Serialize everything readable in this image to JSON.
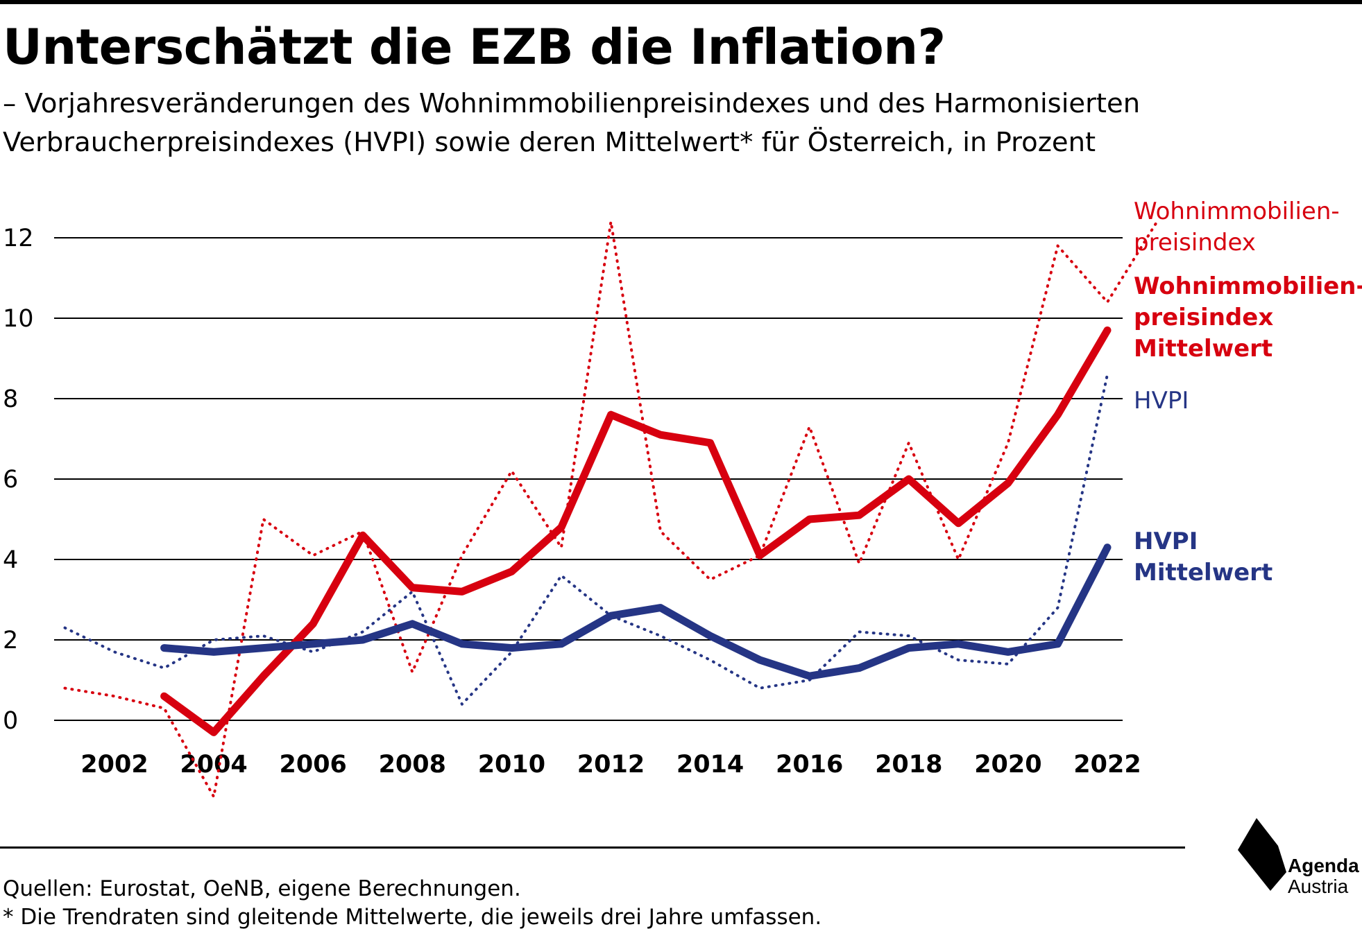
{
  "title": "Unterschätzt die EZB die Inflation?",
  "subtitle": "– Vorjahresveränderungen des Wohnimmobilienpreisindexes und des Harmonisierten Verbraucherpreisindexes (HVPI) sowie deren Mittelwert* für Österreich, in Prozent",
  "footer": {
    "sources": "Quellen: Eurostat, OeNB, eigene Berechnungen.",
    "footnote": "* Die Trendraten sind gleitende Mittelwerte, die jeweils drei Jahre umfassen."
  },
  "logo": {
    "line1": "Agenda",
    "line2": "Austria"
  },
  "colors": {
    "red": "#d7000f",
    "blue": "#253585",
    "grid": "#000000"
  },
  "chart_data": {
    "type": "line",
    "title": "Unterschätzt die EZB die Inflation?",
    "xlabel": "",
    "ylabel": "",
    "xlim": [
      2000.5,
      2022.6
    ],
    "ylim": [
      0,
      12
    ],
    "x_ticks": [
      "2002",
      "2004",
      "2006",
      "2008",
      "2010",
      "2012",
      "2014",
      "2016",
      "2018",
      "2020",
      "2022"
    ],
    "y_ticks": [
      "0",
      "2",
      "4",
      "6",
      "8",
      "10",
      "12"
    ],
    "grid": "horizontal",
    "legend": "right, labels next to line ends",
    "series": [
      {
        "name": "Wohnimmobilienpreisindex",
        "label_lines": [
          "Wohnimmobilien-",
          "preisindex"
        ],
        "style": "dotted",
        "color": "#d7000f",
        "x": [
          2001,
          2002,
          2003,
          2004,
          2005,
          2006,
          2007,
          2008,
          2009,
          2010,
          2011,
          2012,
          2013,
          2014,
          2015,
          2016,
          2017,
          2018,
          2019,
          2020,
          2021,
          2022,
          2023
        ],
        "y": [
          0.8,
          0.6,
          0.3,
          -1.9,
          5.0,
          4.1,
          4.7,
          1.2,
          4.1,
          6.2,
          4.3,
          12.4,
          4.7,
          3.5,
          4.1,
          7.3,
          3.9,
          6.9,
          4.0,
          6.9,
          11.8,
          10.4,
          12.4
        ]
      },
      {
        "name": "Wohnimmobilienpreisindex Mittelwert",
        "label_lines": [
          "Wohnimmobilien-",
          "preisindex",
          "Mittelwert"
        ],
        "style": "solid",
        "color": "#d7000f",
        "x": [
          2003,
          2004,
          2005,
          2006,
          2007,
          2008,
          2009,
          2010,
          2011,
          2012,
          2013,
          2014,
          2015,
          2016,
          2017,
          2018,
          2019,
          2020,
          2021,
          2022
        ],
        "y": [
          0.6,
          -0.3,
          1.1,
          2.4,
          4.6,
          3.3,
          3.2,
          3.7,
          4.8,
          7.6,
          7.1,
          6.9,
          4.1,
          5.0,
          5.1,
          6.0,
          4.9,
          5.9,
          7.6,
          9.7
        ]
      },
      {
        "name": "HVPI",
        "label_lines": [
          "HVPI"
        ],
        "style": "dotted",
        "color": "#253585",
        "x": [
          2001,
          2002,
          2003,
          2004,
          2005,
          2006,
          2007,
          2008,
          2009,
          2010,
          2011,
          2012,
          2013,
          2014,
          2015,
          2016,
          2017,
          2018,
          2019,
          2020,
          2021,
          2022
        ],
        "y": [
          2.3,
          1.7,
          1.3,
          2.0,
          2.1,
          1.7,
          2.2,
          3.2,
          0.4,
          1.7,
          3.6,
          2.6,
          2.1,
          1.5,
          0.8,
          1.0,
          2.2,
          2.1,
          1.5,
          1.4,
          2.8,
          8.6
        ]
      },
      {
        "name": "HVPI Mittelwert",
        "label_lines": [
          "HVPI",
          "Mittelwert"
        ],
        "style": "solid",
        "color": "#253585",
        "x": [
          2003,
          2004,
          2005,
          2006,
          2007,
          2008,
          2009,
          2010,
          2011,
          2012,
          2013,
          2014,
          2015,
          2016,
          2017,
          2018,
          2019,
          2020,
          2021,
          2022
        ],
        "y": [
          1.8,
          1.7,
          1.8,
          1.9,
          2.0,
          2.4,
          1.9,
          1.8,
          1.9,
          2.6,
          2.8,
          2.1,
          1.5,
          1.1,
          1.3,
          1.8,
          1.9,
          1.7,
          1.9,
          4.3
        ]
      }
    ]
  }
}
